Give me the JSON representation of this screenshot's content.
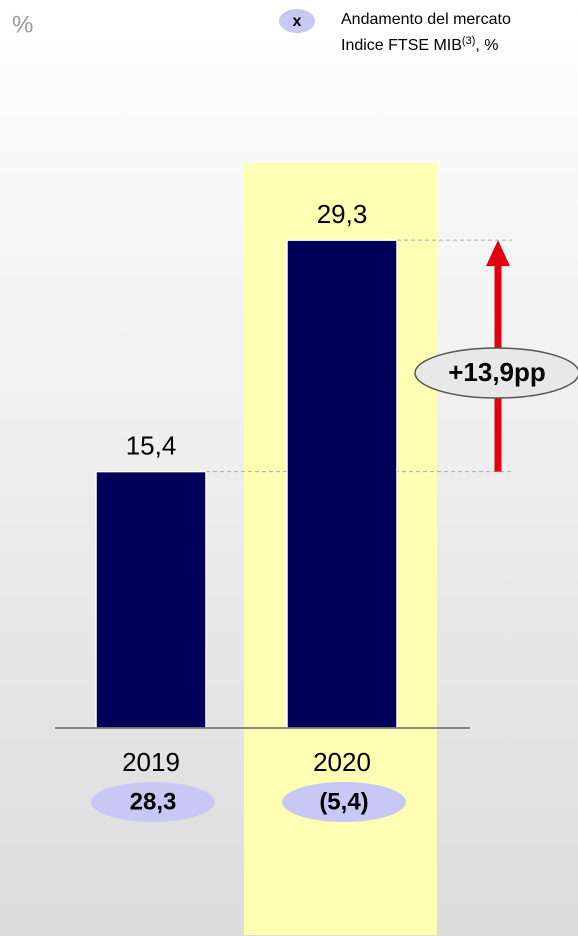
{
  "chart_data": {
    "type": "bar",
    "unit": "%",
    "categories": [
      "2019",
      "2020"
    ],
    "values": [
      15.4,
      29.3
    ],
    "value_labels": [
      "15,4",
      "29,3"
    ],
    "color": "#00005a",
    "highlight_color": "#ffffb4",
    "annotation": "+13,9pp",
    "arrow_color": "#e00010",
    "market": {
      "marker": "x",
      "name": "Andamento del mercato",
      "subname": "Indice FTSE MIB",
      "note": "(3)",
      "unit_text": ", %",
      "color": "#c8c8f4",
      "values": [
        28.3,
        -5.4
      ],
      "value_labels": [
        "28,3",
        "(5,4)"
      ]
    }
  }
}
